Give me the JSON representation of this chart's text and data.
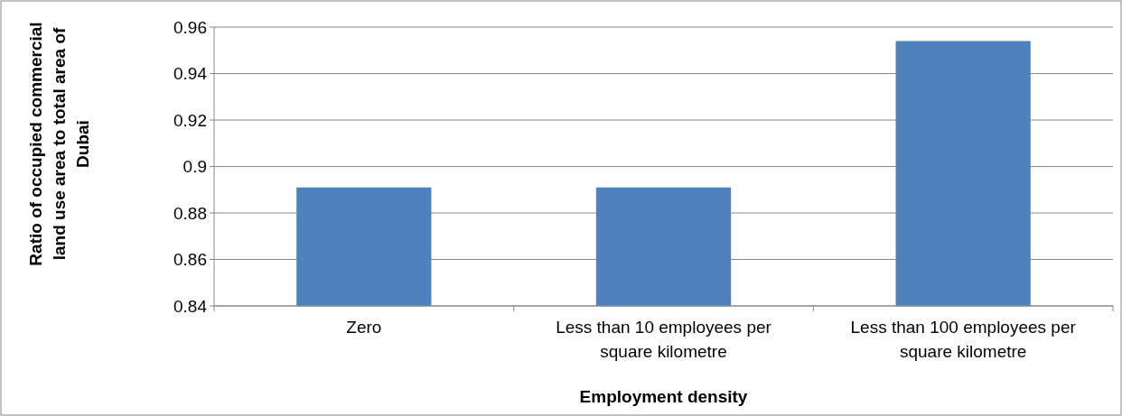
{
  "chart_data": {
    "type": "bar",
    "xlabel": "Employment density",
    "ylabel": "Ratio of occupied commercial land use area to total area of Dubai",
    "categories": [
      "Zero",
      "Less than 10 employees per square kilometre",
      "Less than 100 employees per square kilometre"
    ],
    "values": [
      0.891,
      0.891,
      0.954
    ],
    "color": "#4f81bd",
    "ylim": [
      0.84,
      0.96
    ],
    "yticks": [
      0.84,
      0.86,
      0.88,
      0.9,
      0.92,
      0.94,
      0.96
    ],
    "grid": "y"
  }
}
